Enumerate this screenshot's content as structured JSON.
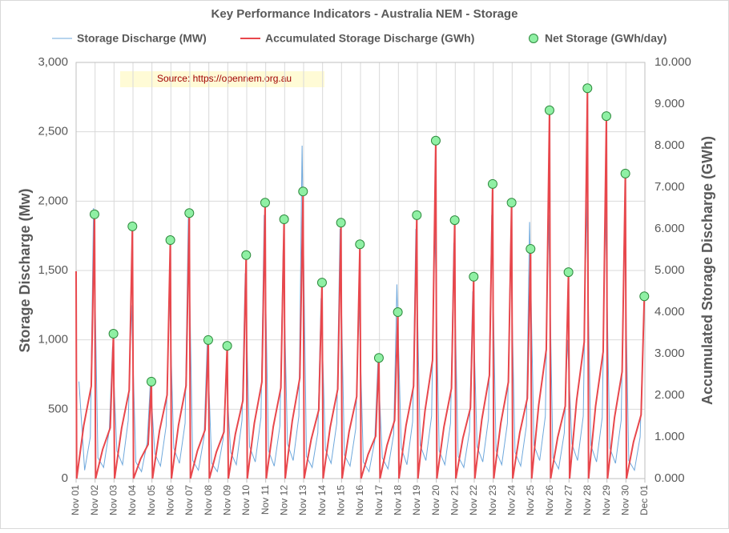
{
  "chart_data": {
    "type": "line",
    "title": "Key Performance Indicators - Australia NEM - Storage",
    "annotation": "Source:  https://opennem.org.au",
    "y_label": "Storage Discharge (Mw)",
    "y2_label": "Accumulated Storage Discharge (GWh)",
    "xlim": [
      0,
      30
    ],
    "xticks": [
      {
        "value": 0,
        "label": "Nov 01"
      },
      {
        "value": 1,
        "label": "Nov 02"
      },
      {
        "value": 2,
        "label": "Nov 03"
      },
      {
        "value": 3,
        "label": "Nov 04"
      },
      {
        "value": 4,
        "label": "Nov 05"
      },
      {
        "value": 5,
        "label": "Nov 06"
      },
      {
        "value": 6,
        "label": "Nov 07"
      },
      {
        "value": 7,
        "label": "Nov 08"
      },
      {
        "value": 8,
        "label": "Nov 09"
      },
      {
        "value": 9,
        "label": "Nov 10"
      },
      {
        "value": 10,
        "label": "Nov 11"
      },
      {
        "value": 11,
        "label": "Nov 12"
      },
      {
        "value": 12,
        "label": "Nov 13"
      },
      {
        "value": 13,
        "label": "Nov 14"
      },
      {
        "value": 14,
        "label": "Nov 15"
      },
      {
        "value": 15,
        "label": "Nov 16"
      },
      {
        "value": 16,
        "label": "Nov 17"
      },
      {
        "value": 17,
        "label": "Nov 18"
      },
      {
        "value": 18,
        "label": "Nov 19"
      },
      {
        "value": 19,
        "label": "Nov 20"
      },
      {
        "value": 20,
        "label": "Nov 21"
      },
      {
        "value": 21,
        "label": "Nov 22"
      },
      {
        "value": 22,
        "label": "Nov 23"
      },
      {
        "value": 23,
        "label": "Nov 24"
      },
      {
        "value": 24,
        "label": "Nov 25"
      },
      {
        "value": 25,
        "label": "Nov 26"
      },
      {
        "value": 26,
        "label": "Nov 27"
      },
      {
        "value": 27,
        "label": "Nov 28"
      },
      {
        "value": 28,
        "label": "Nov 29"
      },
      {
        "value": 29,
        "label": "Nov 30"
      },
      {
        "value": 30,
        "label": "Dec 01"
      }
    ],
    "ylim": [
      0,
      3000
    ],
    "yticks": [
      0,
      500,
      {
        "value": 1000,
        "label": "1,000"
      },
      {
        "value": 1500,
        "label": "1,500"
      },
      {
        "value": 2000,
        "label": "2,000"
      },
      {
        "value": 2500,
        "label": "2,500"
      },
      {
        "value": 3000,
        "label": "3,000"
      }
    ],
    "y2lim": [
      0,
      10
    ],
    "y2ticks": [
      {
        "value": 0,
        "label": "0.000"
      },
      {
        "value": 1,
        "label": "1.000"
      },
      {
        "value": 2,
        "label": "2.000"
      },
      {
        "value": 3,
        "label": "3.000"
      },
      {
        "value": 4,
        "label": "4.000"
      },
      {
        "value": 5,
        "label": "5.000"
      },
      {
        "value": 6,
        "label": "6.000"
      },
      {
        "value": 7,
        "label": "7.000"
      },
      {
        "value": 8,
        "label": "8.000"
      },
      {
        "value": 9,
        "label": "9.000"
      },
      {
        "value": 10,
        "label": "10.000"
      }
    ],
    "grid": true,
    "series": [
      {
        "name": "Storage Discharge (MW)",
        "color": "#6fa8dc",
        "style": "line",
        "axis": "y",
        "x": [
          0.15,
          0.45,
          0.75,
          0.92,
          1.15,
          1.45,
          1.75,
          1.92,
          2.15,
          2.45,
          2.75,
          2.92,
          3.15,
          3.45,
          3.75,
          3.92,
          4.15,
          4.45,
          4.75,
          4.92,
          5.15,
          5.45,
          5.75,
          5.92,
          6.15,
          6.45,
          6.75,
          6.92,
          7.15,
          7.45,
          7.75,
          7.92,
          8.15,
          8.45,
          8.75,
          8.92,
          9.15,
          9.45,
          9.75,
          9.92,
          10.15,
          10.45,
          10.75,
          10.92,
          11.15,
          11.45,
          11.75,
          11.92,
          12.15,
          12.45,
          12.75,
          12.92,
          13.15,
          13.45,
          13.75,
          13.92,
          14.15,
          14.45,
          14.75,
          14.92,
          15.15,
          15.45,
          15.75,
          15.92,
          16.15,
          16.45,
          16.75,
          16.92,
          17.15,
          17.45,
          17.75,
          17.92,
          18.15,
          18.45,
          18.75,
          18.92,
          19.15,
          19.45,
          19.75,
          19.92,
          20.15,
          20.45,
          20.75,
          20.92,
          21.15,
          21.45,
          21.75,
          21.92,
          22.15,
          22.45,
          22.75,
          22.92,
          23.15,
          23.45,
          23.75,
          23.92,
          24.15,
          24.45,
          24.75,
          24.92,
          25.15,
          25.45,
          25.75,
          25.92,
          26.15,
          26.45,
          26.75,
          26.92,
          27.15,
          27.45,
          27.75,
          27.92,
          28.15,
          28.45,
          28.75,
          28.92,
          29.15,
          29.45,
          29.75,
          29.92
        ],
        "values": [
          700,
          60,
          300,
          1950,
          150,
          80,
          350,
          950,
          200,
          100,
          420,
          1250,
          120,
          50,
          260,
          700,
          180,
          90,
          380,
          1350,
          220,
          110,
          400,
          1900,
          130,
          60,
          300,
          1000,
          110,
          50,
          280,
          750,
          190,
          100,
          420,
          1480,
          230,
          120,
          440,
          1900,
          200,
          90,
          380,
          1650,
          250,
          130,
          450,
          2400,
          160,
          80,
          330,
          1300,
          210,
          110,
          400,
          1800,
          170,
          90,
          360,
          1280,
          120,
          50,
          270,
          850,
          150,
          70,
          320,
          1400,
          220,
          100,
          410,
          1800,
          240,
          130,
          450,
          1850,
          200,
          100,
          400,
          1700,
          160,
          80,
          340,
          1350,
          230,
          120,
          430,
          1900,
          200,
          100,
          400,
          1700,
          190,
          90,
          380,
          1850,
          240,
          130,
          450,
          1900,
          150,
          70,
          330,
          1000,
          250,
          130,
          450,
          2000,
          240,
          120,
          440,
          1950,
          220,
          110,
          420,
          1850,
          130,
          60,
          300,
          1100
        ]
      },
      {
        "name": "Accumulated Storage Discharge (GWh)",
        "color": "#e8474c",
        "style": "line",
        "axis": "y2",
        "x": [
          0,
          0.03,
          0.4,
          0.8,
          0.97,
          1.03,
          1.4,
          1.8,
          1.97,
          2.03,
          2.4,
          2.8,
          2.97,
          3.03,
          3.4,
          3.8,
          3.97,
          4.03,
          4.4,
          4.8,
          4.97,
          5.03,
          5.4,
          5.8,
          5.97,
          6.03,
          6.4,
          6.8,
          6.97,
          7.03,
          7.4,
          7.8,
          7.97,
          8.03,
          8.4,
          8.8,
          8.97,
          9.03,
          9.4,
          9.8,
          9.97,
          10.03,
          10.4,
          10.8,
          10.97,
          11.03,
          11.4,
          11.8,
          11.97,
          12.03,
          12.4,
          12.8,
          12.97,
          13.03,
          13.4,
          13.8,
          13.97,
          14.03,
          14.4,
          14.8,
          14.97,
          15.03,
          15.4,
          15.8,
          15.97,
          16.03,
          16.4,
          16.8,
          16.97,
          17.03,
          17.4,
          17.8,
          17.97,
          18.03,
          18.4,
          18.8,
          18.97,
          19.03,
          19.4,
          19.8,
          19.97,
          20.03,
          20.4,
          20.8,
          20.97,
          21.03,
          21.4,
          21.8,
          21.97,
          22.03,
          22.4,
          22.8,
          22.97,
          23.03,
          23.4,
          23.8,
          23.97,
          24.03,
          24.4,
          24.8,
          24.97,
          25.03,
          25.4,
          25.8,
          25.97,
          26.03,
          26.4,
          26.8,
          26.97,
          27.03,
          27.4,
          27.8,
          27.97,
          28.03,
          28.4,
          28.8,
          28.97,
          29.03,
          29.4,
          29.8,
          29.97
        ],
        "values": [
          4.98,
          0,
          1.27,
          2.22,
          6.35,
          0,
          0.7,
          1.22,
          3.48,
          0,
          1.21,
          2.12,
          6.06,
          0,
          0.47,
          0.82,
          2.33,
          0,
          1.15,
          2.01,
          5.73,
          0,
          1.28,
          2.23,
          6.38,
          0,
          0.67,
          1.17,
          3.33,
          0,
          0.64,
          1.12,
          3.19,
          0,
          1.07,
          1.88,
          5.37,
          0,
          1.33,
          2.32,
          6.63,
          0,
          1.25,
          2.18,
          6.23,
          0,
          1.38,
          2.42,
          6.9,
          0,
          0.94,
          1.65,
          4.71,
          0,
          1.23,
          2.15,
          6.15,
          0,
          1.13,
          1.97,
          5.63,
          0,
          0.58,
          1.02,
          2.9,
          0,
          0.8,
          1.4,
          4.0,
          0,
          1.27,
          2.22,
          6.33,
          0,
          1.62,
          2.84,
          8.12,
          0,
          1.24,
          2.17,
          6.21,
          0,
          0.97,
          1.7,
          4.85,
          0,
          1.42,
          2.48,
          7.08,
          0,
          1.33,
          2.32,
          6.63,
          0,
          1.1,
          1.93,
          5.52,
          0,
          1.77,
          3.1,
          8.85,
          0,
          0.99,
          1.74,
          4.96,
          0,
          1.88,
          3.28,
          9.38,
          0,
          1.74,
          3.05,
          8.71,
          0,
          1.47,
          2.57,
          7.33,
          0,
          0.88,
          1.53,
          4.38
        ]
      },
      {
        "name": "Net Storage (GWh/day)",
        "color": "#8ff0a4",
        "edge": "#2e8b3e",
        "style": "dots",
        "axis": "y2",
        "x": [
          0.97,
          1.97,
          2.97,
          3.97,
          4.97,
          5.97,
          6.97,
          7.97,
          8.97,
          9.97,
          10.97,
          11.97,
          12.97,
          13.97,
          14.97,
          15.97,
          16.97,
          17.97,
          18.97,
          19.97,
          20.97,
          21.97,
          22.97,
          23.97,
          24.97,
          25.97,
          26.97,
          27.97,
          28.97,
          29.97
        ],
        "values": [
          6.35,
          3.48,
          6.06,
          2.33,
          5.73,
          6.38,
          3.33,
          3.19,
          5.37,
          6.63,
          6.23,
          6.9,
          4.71,
          6.15,
          5.63,
          2.9,
          4.0,
          6.33,
          8.12,
          6.21,
          4.85,
          7.08,
          6.63,
          5.52,
          8.85,
          4.96,
          9.38,
          8.71,
          7.33,
          4.38
        ]
      }
    ]
  }
}
